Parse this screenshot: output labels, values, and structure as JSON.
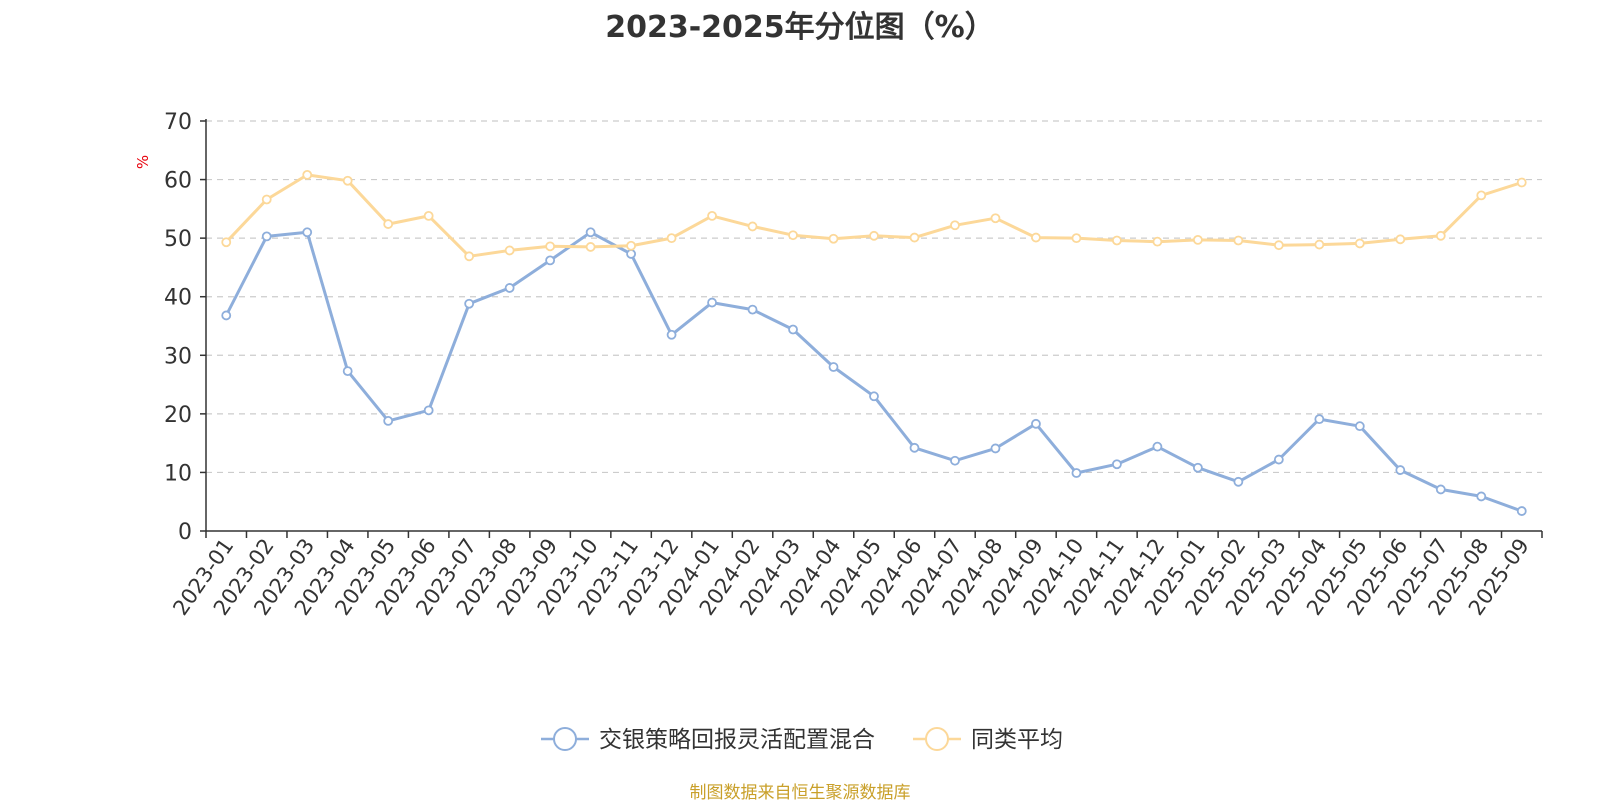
{
  "chart_data": {
    "type": "line",
    "title": "2023-2025年分位图（%）",
    "ylabel": "%",
    "xlabel": "",
    "ylim": [
      0,
      70
    ],
    "yticks": [
      0,
      10,
      20,
      30,
      40,
      50,
      60,
      70
    ],
    "grid": true,
    "legend_position": "bottom-center",
    "categories": [
      "2023-01",
      "2023-02",
      "2023-03",
      "2023-04",
      "2023-05",
      "2023-06",
      "2023-07",
      "2023-08",
      "2023-09",
      "2023-10",
      "2023-11",
      "2023-12",
      "2024-01",
      "2024-02",
      "2024-03",
      "2024-04",
      "2024-05",
      "2024-06",
      "2024-07",
      "2024-08",
      "2024-09",
      "2024-10",
      "2024-11",
      "2024-12",
      "2025-01",
      "2025-02",
      "2025-03",
      "2025-04",
      "2025-05",
      "2025-06",
      "2025-07",
      "2025-08",
      "2025-09"
    ],
    "series": [
      {
        "name": "交银策略回报灵活配置混合",
        "color": "#8eaedb",
        "values": [
          36.8,
          50.3,
          51.0,
          27.3,
          18.8,
          20.6,
          38.8,
          41.5,
          46.2,
          51.0,
          47.3,
          33.5,
          39.0,
          37.8,
          34.4,
          28.0,
          23.0,
          14.2,
          12.0,
          14.1,
          18.3,
          9.9,
          11.4,
          14.4,
          10.8,
          8.4,
          12.2,
          19.1,
          17.9,
          10.4,
          7.1,
          5.9,
          3.4
        ]
      },
      {
        "name": "同类平均",
        "color": "#fcd899",
        "values": [
          49.3,
          56.6,
          60.8,
          59.8,
          52.4,
          53.8,
          46.9,
          47.9,
          48.6,
          48.5,
          48.7,
          50.0,
          53.8,
          52.0,
          50.5,
          49.9,
          50.4,
          50.1,
          52.2,
          53.4,
          50.1,
          50.0,
          49.6,
          49.4,
          49.7,
          49.6,
          48.8,
          48.9,
          49.1,
          49.8,
          50.4,
          57.3,
          59.5
        ]
      }
    ]
  },
  "source_note": "制图数据来自恒生聚源数据库"
}
